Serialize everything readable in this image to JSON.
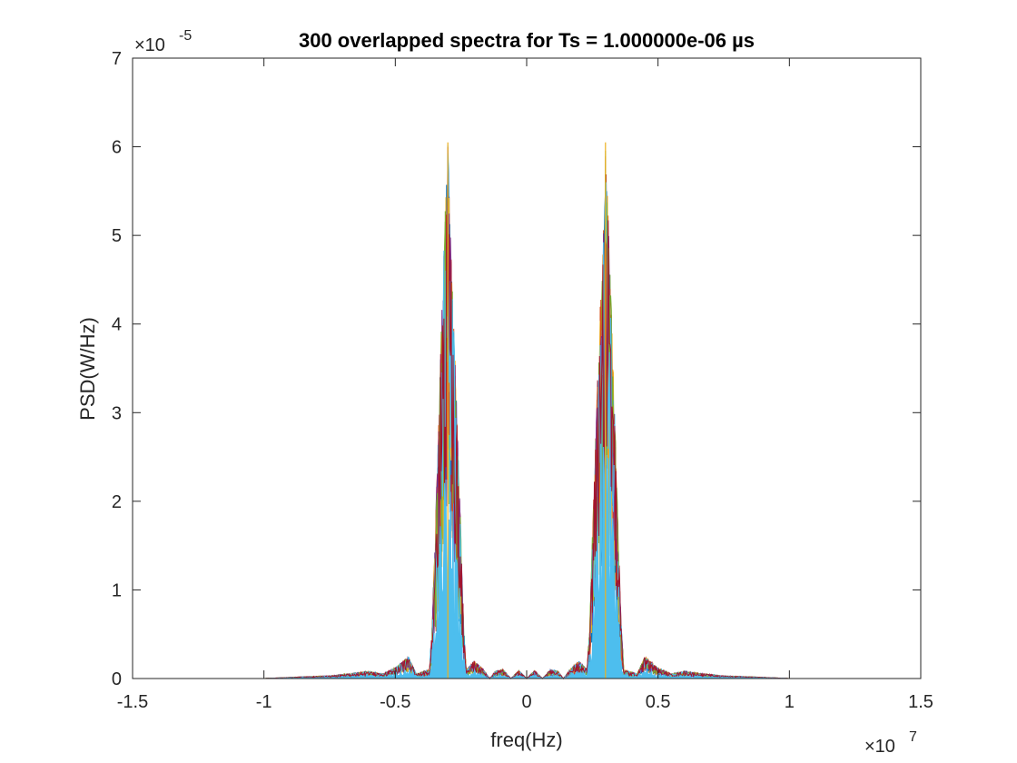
{
  "chart_data": {
    "type": "area",
    "title": "300 overlapped spectra for Ts = 1.000000e-06 µs",
    "xlabel": "freq(Hz)",
    "ylabel": "PSD(W/Hz)",
    "xlim": [
      -1.5,
      1.5
    ],
    "ylim": [
      0,
      7
    ],
    "x_ticks": [
      "-1.5",
      "-1",
      "-0.5",
      "0",
      "0.5",
      "1",
      "1.5"
    ],
    "y_ticks": [
      "0",
      "1",
      "2",
      "3",
      "4",
      "5",
      "6",
      "7"
    ],
    "x_multiplier": {
      "base": "×10",
      "exponent": "7"
    },
    "y_multiplier": {
      "base": "×10",
      "exponent": "-5"
    },
    "grid": false,
    "legend": "none",
    "series_count": 300,
    "fill_color": "#4DBEEE",
    "colors": [
      "#0072BD",
      "#D95319",
      "#EDB120",
      "#7E2F8E",
      "#77AC30",
      "#4DBEEE",
      "#A2142F"
    ],
    "envelope": {
      "x": [
        -1.5,
        -1.0,
        -0.85,
        -0.75,
        -0.68,
        -0.6,
        -0.55,
        -0.5,
        -0.45,
        -0.42,
        -0.37,
        -0.36,
        -0.35,
        -0.33,
        -0.31,
        -0.3,
        -0.29,
        -0.27,
        -0.25,
        -0.24,
        -0.23,
        -0.2,
        -0.17,
        -0.14,
        -0.12,
        -0.09,
        -0.06,
        -0.03,
        0.0,
        0.03,
        0.06,
        0.09,
        0.12,
        0.14,
        0.17,
        0.2,
        0.23,
        0.24,
        0.25,
        0.27,
        0.29,
        0.3,
        0.31,
        0.33,
        0.35,
        0.36,
        0.37,
        0.42,
        0.45,
        0.5,
        0.55,
        0.6,
        0.68,
        0.75,
        0.85,
        1.0,
        1.5
      ],
      "y": [
        0.0,
        0.0,
        0.02,
        0.03,
        0.05,
        0.08,
        0.05,
        0.12,
        0.25,
        0.05,
        0.1,
        0.6,
        1.5,
        3.5,
        5.3,
        6.05,
        5.0,
        3.4,
        1.6,
        0.6,
        0.1,
        0.2,
        0.12,
        0.0,
        0.08,
        0.1,
        0.0,
        0.09,
        0.0,
        0.09,
        0.0,
        0.1,
        0.08,
        0.0,
        0.12,
        0.2,
        0.1,
        0.6,
        1.6,
        3.4,
        5.0,
        6.05,
        5.3,
        3.5,
        1.5,
        0.6,
        0.1,
        0.05,
        0.25,
        0.12,
        0.05,
        0.08,
        0.05,
        0.03,
        0.02,
        0.0,
        0.0
      ]
    }
  }
}
